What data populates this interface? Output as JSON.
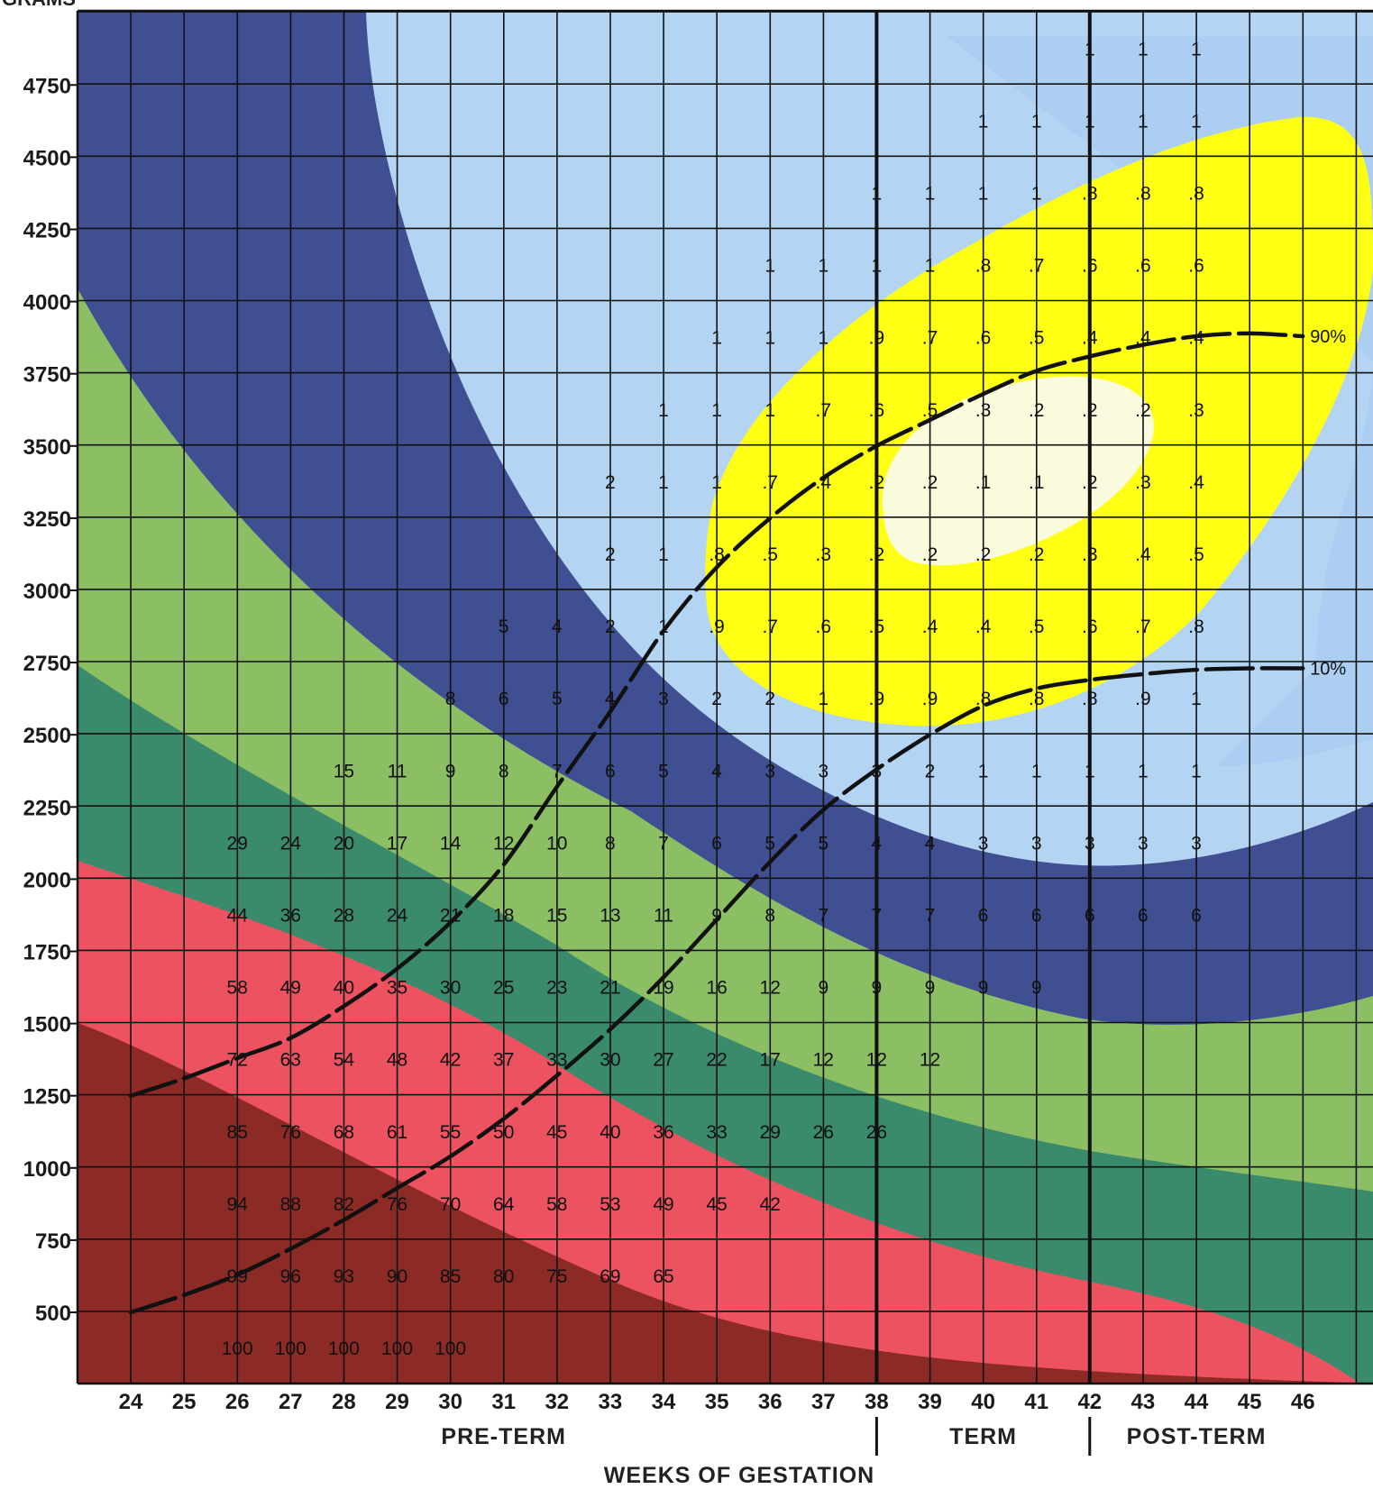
{
  "chart_data": {
    "type": "heatmap",
    "title": "",
    "ylabel": "GRAMS",
    "xlabel": "WEEKS OF GESTATION",
    "x": [
      24,
      25,
      26,
      27,
      28,
      29,
      30,
      31,
      32,
      33,
      34,
      35,
      36,
      37,
      38,
      39,
      40,
      41,
      42,
      43,
      44,
      45,
      46
    ],
    "y_ticks": [
      500,
      750,
      1000,
      1250,
      1500,
      1750,
      2000,
      2250,
      2500,
      2750,
      3000,
      3250,
      3500,
      3750,
      4000,
      4250,
      4500,
      4750
    ],
    "xlim": [
      23.5,
      46.5
    ],
    "ylim": [
      250,
      5000
    ],
    "periods": [
      {
        "label": "PRE-TERM",
        "from": 24,
        "to": 38
      },
      {
        "label": "TERM",
        "from": 38,
        "to": 42
      },
      {
        "label": "POST-TERM",
        "from": 42,
        "to": 46
      }
    ],
    "rows": [
      {
        "weight": 4875,
        "values": {
          "42": "1",
          "43": "1",
          "44": "1"
        }
      },
      {
        "weight": 4625,
        "values": {
          "40": "1",
          "41": "1",
          "42": "1",
          "43": "1",
          "44": "1"
        }
      },
      {
        "weight": 4375,
        "values": {
          "38": "1",
          "39": "1",
          "40": "1",
          "41": "1",
          "42": ".8",
          "43": ".8",
          "44": ".8"
        }
      },
      {
        "weight": 4125,
        "values": {
          "36": "1",
          "37": "1",
          "38": "1",
          "39": "1",
          "40": ".8",
          "41": ".7",
          "42": ".6",
          "43": ".6",
          "44": ".6"
        }
      },
      {
        "weight": 3875,
        "values": {
          "35": "1",
          "36": "1",
          "37": "1",
          "38": ".9",
          "39": ".7",
          "40": ".6",
          "41": ".5",
          "42": ".4",
          "43": ".4",
          "44": ".4"
        }
      },
      {
        "weight": 3625,
        "values": {
          "34": "1",
          "35": "1",
          "36": "1",
          "37": ".7",
          "38": ".6",
          "39": ".5",
          "40": ".3",
          "41": ".2",
          "42": ".2",
          "43": ".2",
          "44": ".3"
        }
      },
      {
        "weight": 3375,
        "values": {
          "33": "2",
          "34": "1",
          "35": "1",
          "36": ".7",
          "37": ".4",
          "38": ".2",
          "39": ".2",
          "40": ".1",
          "41": ".1",
          "42": ".2",
          "43": ".3",
          "44": ".4"
        }
      },
      {
        "weight": 3125,
        "values": {
          "33": "2",
          "34": "1",
          "35": ".8",
          "36": ".5",
          "37": ".3",
          "38": ".2",
          "39": ".2",
          "40": ".2",
          "41": ".2",
          "42": ".3",
          "43": ".4",
          "44": ".5"
        }
      },
      {
        "weight": 2875,
        "values": {
          "31": "5",
          "32": "4",
          "33": "2",
          "34": "1",
          "35": ".9",
          "36": ".7",
          "37": ".6",
          "38": ".5",
          "39": ".4",
          "40": ".4",
          "41": ".5",
          "42": ".6",
          "43": ".7",
          "44": ".8"
        }
      },
      {
        "weight": 2625,
        "values": {
          "30": "8",
          "31": "6",
          "32": "5",
          "33": "4",
          "34": "3",
          "35": "2",
          "36": "2",
          "37": "1",
          "38": ".9",
          "39": ".9",
          "40": ".8",
          "41": ".8",
          "42": ".8",
          "43": ".9",
          "44": "1"
        }
      },
      {
        "weight": 2375,
        "values": {
          "28": "15",
          "29": "11",
          "30": "9",
          "31": "8",
          "32": "7",
          "33": "6",
          "34": "5",
          "35": "4",
          "36": "3",
          "37": "3",
          "38": "3",
          "39": "2",
          "40": "1",
          "41": "1",
          "42": "1",
          "43": "1",
          "44": "1"
        }
      },
      {
        "weight": 2125,
        "values": {
          "26": "29",
          "27": "24",
          "28": "20",
          "29": "17",
          "30": "14",
          "31": "12",
          "32": "10",
          "33": "8",
          "34": "7",
          "35": "6",
          "36": "5",
          "37": "5",
          "38": "4",
          "39": "4",
          "40": "3",
          "41": "3",
          "42": "3",
          "43": "3",
          "44": "3"
        }
      },
      {
        "weight": 1875,
        "values": {
          "26": "44",
          "27": "36",
          "28": "28",
          "29": "24",
          "30": "21",
          "31": "18",
          "32": "15",
          "33": "13",
          "34": "11",
          "35": "9",
          "36": "8",
          "37": "7",
          "38": "7",
          "39": "7",
          "40": "6",
          "41": "6",
          "42": "6",
          "43": "6",
          "44": "6"
        }
      },
      {
        "weight": 1625,
        "values": {
          "26": "58",
          "27": "49",
          "28": "40",
          "29": "35",
          "30": "30",
          "31": "25",
          "32": "23",
          "33": "21",
          "34": "19",
          "35": "16",
          "36": "12",
          "37": "9",
          "38": "9",
          "39": "9",
          "40": "9",
          "41": "9"
        }
      },
      {
        "weight": 1375,
        "values": {
          "26": "72",
          "27": "63",
          "28": "54",
          "29": "48",
          "30": "42",
          "31": "37",
          "32": "33",
          "33": "30",
          "34": "27",
          "35": "22",
          "36": "17",
          "37": "12",
          "38": "12",
          "39": "12"
        }
      },
      {
        "weight": 1125,
        "values": {
          "26": "85",
          "27": "76",
          "28": "68",
          "29": "61",
          "30": "55",
          "31": "50",
          "32": "45",
          "33": "40",
          "34": "36",
          "35": "33",
          "36": "29",
          "37": "26",
          "38": "26"
        }
      },
      {
        "weight": 875,
        "values": {
          "26": "94",
          "27": "88",
          "28": "82",
          "29": "76",
          "30": "70",
          "31": "64",
          "32": "58",
          "33": "53",
          "34": "49",
          "35": "45",
          "36": "42"
        }
      },
      {
        "weight": 625,
        "values": {
          "26": "99",
          "27": "96",
          "28": "93",
          "29": "90",
          "30": "85",
          "31": "80",
          "32": "75",
          "33": "69",
          "34": "65"
        }
      },
      {
        "weight": 375,
        "values": {
          "26": "100",
          "27": "100",
          "28": "100",
          "29": "100",
          "30": "100"
        }
      }
    ],
    "zones": [
      {
        "color": "#8c2a26"
      },
      {
        "color": "#ec5260"
      },
      {
        "color": "#3a8a6c"
      },
      {
        "color": "#8cbe64"
      },
      {
        "color": "#3f4f92"
      },
      {
        "color": "#b4d4f4"
      },
      {
        "color": "#ffff14"
      },
      {
        "color": "#fafadc"
      }
    ],
    "percentile_curves": [
      {
        "label": "90%",
        "points": [
          [
            24,
            1250
          ],
          [
            25,
            1310
          ],
          [
            26,
            1380
          ],
          [
            27,
            1450
          ],
          [
            28,
            1560
          ],
          [
            29,
            1690
          ],
          [
            30,
            1850
          ],
          [
            31,
            2050
          ],
          [
            32,
            2320
          ],
          [
            33,
            2580
          ],
          [
            34,
            2860
          ],
          [
            35,
            3080
          ],
          [
            36,
            3250
          ],
          [
            37,
            3390
          ],
          [
            38,
            3500
          ],
          [
            39,
            3590
          ],
          [
            40,
            3680
          ],
          [
            41,
            3760
          ],
          [
            42,
            3810
          ],
          [
            43,
            3850
          ],
          [
            44,
            3880
          ],
          [
            45,
            3890
          ],
          [
            46,
            3880
          ]
        ]
      },
      {
        "label": "10%",
        "points": [
          [
            24,
            500
          ],
          [
            25,
            560
          ],
          [
            26,
            630
          ],
          [
            27,
            720
          ],
          [
            28,
            820
          ],
          [
            29,
            930
          ],
          [
            30,
            1040
          ],
          [
            31,
            1170
          ],
          [
            32,
            1320
          ],
          [
            33,
            1480
          ],
          [
            34,
            1660
          ],
          [
            35,
            1860
          ],
          [
            36,
            2060
          ],
          [
            37,
            2240
          ],
          [
            38,
            2380
          ],
          [
            39,
            2500
          ],
          [
            40,
            2600
          ],
          [
            41,
            2660
          ],
          [
            42,
            2690
          ],
          [
            43,
            2710
          ],
          [
            44,
            2725
          ],
          [
            45,
            2730
          ],
          [
            46,
            2730
          ]
        ]
      }
    ]
  }
}
